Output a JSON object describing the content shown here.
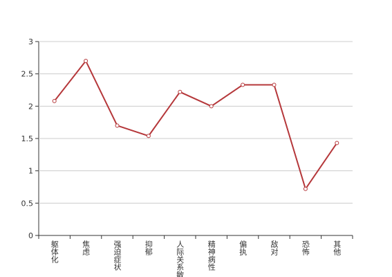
{
  "chart_data": {
    "type": "line",
    "categories": [
      "躯体化",
      "焦虑",
      "强迫症状",
      "抑郁",
      "人际关系敏感",
      "精神病性",
      "偏执",
      "敌对",
      "恐怖",
      "其他"
    ],
    "values": [
      2.08,
      2.7,
      1.7,
      1.54,
      2.22,
      2.0,
      2.33,
      2.33,
      0.72,
      1.43
    ],
    "color": "#b5373a",
    "ylim": [
      0,
      3
    ],
    "yticks": [
      0,
      0.5,
      1,
      1.5,
      2,
      2.5,
      3
    ],
    "grid": true
  }
}
